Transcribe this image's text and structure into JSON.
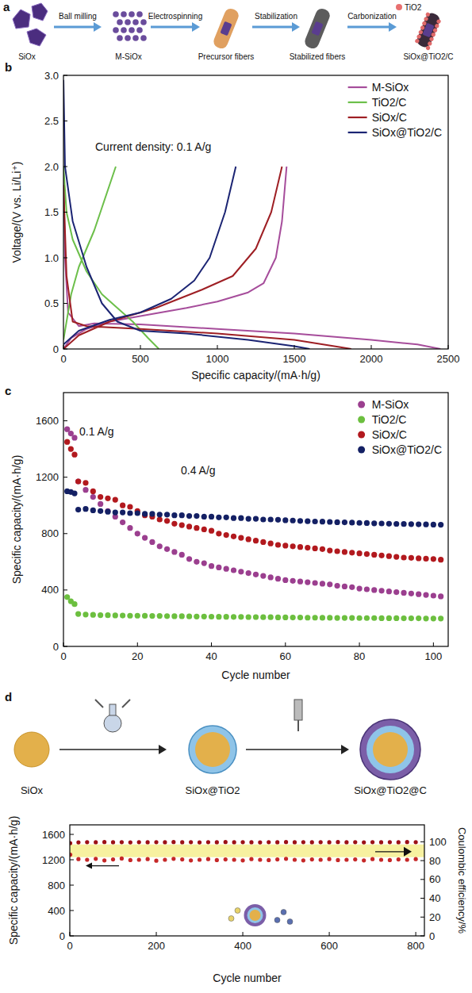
{
  "diagram_a": {
    "panel": "a",
    "key": "TiO2",
    "steps": [
      "Ball milling",
      "Electrospinning",
      "Stabilization",
      "Carbonization"
    ],
    "stages": [
      "SiOx",
      "M-SiOx",
      "Precursor fibers",
      "Stabilized fibers",
      "SiOx@TiO2/C"
    ]
  },
  "diagram_d": {
    "panel": "d",
    "stages": [
      "SiOx",
      "SiOx@TiO2",
      "SiOx@TiO2@C"
    ]
  },
  "chart_data": [
    {
      "type": "line",
      "panel": "b",
      "annotations": [
        "Current density: 0.1 A/g"
      ],
      "xlabel": "Specific capacity/(mA·h/g)",
      "ylabel": "Voltage/(V vs. Li/Li⁺)",
      "xlim": [
        0,
        2500
      ],
      "ylim": [
        0,
        3
      ],
      "xticks": [
        0,
        500,
        1000,
        1500,
        2000,
        2500
      ],
      "yticks": [
        0,
        0.5,
        {
          "value": 1,
          "label": "1.0"
        },
        1.5,
        {
          "value": 2,
          "label": "2.0"
        },
        2.5,
        {
          "value": 3,
          "label": "3.0"
        }
      ],
      "grid": false,
      "legend": "upper right",
      "series": [
        {
          "name": "M-SiOx",
          "color": "#a64d9b",
          "x": [
            0,
            10,
            30,
            100,
            200,
            500,
            1000,
            1500,
            2000,
            2300,
            2450,
            null,
            0,
            50,
            150,
            300,
            500,
            800,
            1000,
            1200,
            1300,
            1380,
            1420,
            1450
          ],
          "values": [
            2.0,
            1.0,
            0.4,
            0.25,
            0.28,
            0.27,
            0.22,
            0.17,
            0.1,
            0.05,
            0.0,
            null,
            0.0,
            0.12,
            0.22,
            0.3,
            0.36,
            0.45,
            0.52,
            0.62,
            0.72,
            1.0,
            1.4,
            2.0
          ]
        },
        {
          "name": "TiO2/C",
          "color": "#6cbf4a",
          "x": [
            0,
            20,
            60,
            150,
            250,
            350,
            450,
            550,
            620,
            null,
            0,
            50,
            100,
            150,
            200,
            250,
            300,
            340
          ],
          "values": [
            2.0,
            1.5,
            1.2,
            0.85,
            0.6,
            0.45,
            0.3,
            0.12,
            0.0,
            null,
            0.1,
            0.6,
            0.9,
            1.1,
            1.3,
            1.55,
            1.8,
            2.0
          ]
        },
        {
          "name": "SiOx/C",
          "color": "#9e1f24",
          "x": [
            0,
            20,
            60,
            150,
            500,
            1000,
            1500,
            1800,
            1870,
            null,
            0,
            100,
            300,
            600,
            900,
            1100,
            1250,
            1350,
            1420
          ],
          "values": [
            1.8,
            0.8,
            0.3,
            0.25,
            0.22,
            0.17,
            0.1,
            0.02,
            0.0,
            null,
            0.0,
            0.15,
            0.3,
            0.45,
            0.65,
            0.8,
            1.1,
            1.5,
            2.0
          ]
        },
        {
          "name": "SiOx@TiO2/C",
          "color": "#1b2473",
          "x": [
            0,
            10,
            60,
            150,
            250,
            350,
            500,
            800,
            1200,
            1500,
            1600,
            null,
            0,
            100,
            300,
            500,
            700,
            850,
            950,
            1050,
            1120
          ],
          "values": [
            2.95,
            2.0,
            1.4,
            0.9,
            0.5,
            0.3,
            0.2,
            0.17,
            0.1,
            0.03,
            0.0,
            null,
            0.05,
            0.2,
            0.32,
            0.4,
            0.55,
            0.75,
            1.0,
            1.5,
            2.0
          ]
        }
      ]
    },
    {
      "type": "scatter",
      "panel": "c",
      "annotations": [
        "0.1 A/g",
        "0.4 A/g"
      ],
      "xlabel": "Cycle number",
      "ylabel": "Specific capacity/(mA·h/g)",
      "xlim": [
        0,
        104
      ],
      "ylim": [
        0,
        1800
      ],
      "xticks": [
        0,
        20,
        40,
        60,
        80,
        100
      ],
      "yticks": [
        0,
        400,
        800,
        1200,
        1600
      ],
      "grid": false,
      "legend": "upper right",
      "marker": "circle",
      "x": [
        1,
        2,
        3,
        4,
        6,
        8,
        10,
        12,
        14,
        16,
        18,
        20,
        22,
        24,
        26,
        28,
        30,
        32,
        34,
        36,
        38,
        40,
        42,
        44,
        46,
        48,
        50,
        52,
        54,
        56,
        58,
        60,
        62,
        64,
        66,
        68,
        70,
        72,
        74,
        76,
        78,
        80,
        82,
        84,
        86,
        88,
        90,
        92,
        94,
        96,
        98,
        100,
        102
      ],
      "series": [
        {
          "name": "M-SiOx",
          "color": "#9b3f8f",
          "values": [
            1540,
            1510,
            1480,
            1170,
            1110,
            1060,
            1010,
            960,
            920,
            880,
            840,
            800,
            770,
            740,
            710,
            690,
            670,
            650,
            620,
            600,
            590,
            570,
            560,
            550,
            540,
            530,
            520,
            510,
            500,
            490,
            480,
            470,
            465,
            460,
            455,
            450,
            445,
            440,
            430,
            425,
            420,
            410,
            405,
            400,
            395,
            390,
            385,
            380,
            375,
            370,
            365,
            360,
            355
          ]
        },
        {
          "name": "TiO2/C",
          "color": "#6cbf3f",
          "values": [
            350,
            320,
            300,
            230,
            226,
            224,
            222,
            221,
            220,
            219,
            218,
            218,
            217,
            216,
            216,
            215,
            214,
            214,
            213,
            212,
            212,
            211,
            210,
            210,
            209,
            209,
            208,
            208,
            207,
            207,
            206,
            206,
            205,
            205,
            204,
            204,
            203,
            203,
            202,
            202,
            202,
            201,
            201,
            201,
            200,
            200,
            200,
            199,
            199,
            199,
            198,
            198,
            198
          ]
        },
        {
          "name": "SiOx/C",
          "color": "#b2191e",
          "values": [
            1450,
            1400,
            1360,
            1170,
            1160,
            1100,
            1060,
            1050,
            1040,
            1000,
            990,
            960,
            930,
            920,
            900,
            890,
            870,
            860,
            850,
            840,
            830,
            820,
            800,
            790,
            780,
            770,
            760,
            750,
            740,
            730,
            720,
            715,
            710,
            705,
            700,
            695,
            690,
            680,
            675,
            670,
            665,
            660,
            655,
            650,
            645,
            640,
            635,
            630,
            628,
            625,
            622,
            620,
            615
          ]
        },
        {
          "name": "SiOx@TiO2/C",
          "color": "#142064",
          "values": [
            1100,
            1095,
            1085,
            970,
            975,
            965,
            960,
            955,
            950,
            950,
            945,
            945,
            940,
            940,
            935,
            935,
            930,
            930,
            925,
            925,
            920,
            920,
            915,
            915,
            910,
            910,
            905,
            905,
            900,
            900,
            898,
            895,
            893,
            890,
            888,
            886,
            885,
            883,
            881,
            880,
            878,
            876,
            875,
            873,
            872,
            870,
            869,
            868,
            867,
            866,
            865,
            864,
            863
          ]
        }
      ]
    },
    {
      "type": "scatter",
      "xlabel": "Cycle number",
      "ylabel": "Specific capacity/(mA·h/g)",
      "y2label": "Coulombic efficiency/%",
      "xlim": [
        0,
        820
      ],
      "ylim": [
        0,
        1750
      ],
      "y2lim": [
        0,
        118
      ],
      "xticks": [
        0,
        200,
        400,
        600,
        800
      ],
      "yticks": [
        0,
        400,
        800,
        1200,
        1600
      ],
      "y2ticks": [
        0,
        20,
        40,
        60,
        80,
        100
      ],
      "grid": false,
      "marker": "circle",
      "x": [
        1,
        20,
        40,
        60,
        80,
        100,
        120,
        140,
        160,
        180,
        200,
        220,
        240,
        260,
        280,
        300,
        320,
        340,
        360,
        380,
        400,
        420,
        440,
        460,
        480,
        500,
        520,
        540,
        560,
        580,
        600,
        620,
        640,
        660,
        680,
        700,
        720,
        740,
        760,
        780,
        800
      ],
      "series": [
        {
          "color": "#c62828",
          "values": [
            1280,
            1210,
            1200,
            1215,
            1190,
            1205,
            1220,
            1195,
            1200,
            1210,
            1185,
            1200,
            1215,
            1205,
            1190,
            1200,
            1210,
            1195,
            1205,
            1200,
            1190,
            1210,
            1200,
            1195,
            1205,
            1215,
            1200,
            1190,
            1205,
            1200,
            1210,
            1195,
            1200,
            1205,
            1190,
            1210,
            1200,
            1195,
            1205,
            1200,
            1210
          ]
        },
        {
          "color": "#9c1016",
          "axis": "y2",
          "values": [
            98.6,
            99.4,
            99.6,
            99.5,
            99.7,
            99.5,
            99.6,
            99.4,
            99.6,
            99.5,
            99.6,
            99.5,
            99.7,
            99.5,
            99.6,
            99.4,
            99.6,
            99.5,
            99.7,
            99.5,
            99.6,
            99.5,
            99.4,
            99.6,
            99.5,
            99.7,
            99.5,
            99.6,
            99.5,
            99.6,
            99.5,
            99.7,
            99.5,
            99.6,
            99.4,
            99.6,
            99.5,
            99.6,
            99.5,
            99.7,
            99.6
          ]
        }
      ]
    }
  ]
}
